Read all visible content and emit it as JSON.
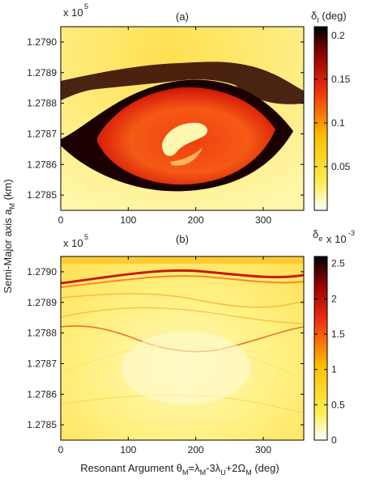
{
  "shared": {
    "ylabel_main": "Semi-Major axis a",
    "ylabel_sub": "M",
    "ylabel_unit": " (km)",
    "xlabel_parts": [
      "Resonant Argument θ",
      "M",
      "=λ",
      "M",
      "-3λ",
      "U",
      "+2Ω",
      "M",
      " (deg)"
    ]
  },
  "chart_data": [
    {
      "type": "heatmap",
      "title": "(a)",
      "x_ticks": [
        "0",
        "100",
        "200",
        "300"
      ],
      "x_tick_values": [
        0,
        100,
        200,
        300
      ],
      "xlim": [
        0,
        360
      ],
      "y_multiplier": "x 10",
      "y_multiplier_exp": "5",
      "y_ticks": [
        "1.2785",
        "1.2786",
        "1.2787",
        "1.2788",
        "1.2789",
        "1.2790"
      ],
      "y_tick_values": [
        1.2785,
        1.2786,
        1.2787,
        1.2788,
        1.2789,
        1.279
      ],
      "ylim": [
        1.27845,
        1.27905
      ],
      "colorbar": {
        "label_symbol": "δ",
        "label_sub": "I",
        "label_unit": " (deg)",
        "ticks": [
          "0.05",
          "0.1",
          "0.15",
          "0.2"
        ],
        "tick_values": [
          0.05,
          0.1,
          0.15,
          0.2
        ],
        "range": [
          0,
          0.21
        ],
        "colormap": [
          "#ffffff",
          "#ffee55",
          "#ffc000",
          "#f03010",
          "#900000",
          "#000000"
        ]
      }
    },
    {
      "type": "heatmap",
      "title": "(b)",
      "x_ticks": [
        "0",
        "100",
        "200",
        "300"
      ],
      "x_tick_values": [
        0,
        100,
        200,
        300
      ],
      "xlim": [
        0,
        360
      ],
      "y_multiplier": "x 10",
      "y_multiplier_exp": "5",
      "y_ticks": [
        "1.2785",
        "1.2786",
        "1.2787",
        "1.2788",
        "1.2789",
        "1.2790"
      ],
      "y_tick_values": [
        1.2785,
        1.2786,
        1.2787,
        1.2788,
        1.2789,
        1.279
      ],
      "ylim": [
        1.27845,
        1.27905
      ],
      "colorbar": {
        "label_symbol": "δ",
        "label_sub": "e",
        "multiplier": "x 10",
        "multiplier_exp": "-3",
        "ticks": [
          "0",
          "0.5",
          "1",
          "1.5",
          "2",
          "2.5"
        ],
        "tick_values": [
          0,
          0.5,
          1,
          1.5,
          2,
          2.5
        ],
        "range": [
          0,
          2.6
        ],
        "colormap": [
          "#ffffff",
          "#ffee55",
          "#ffc000",
          "#f03010",
          "#900000",
          "#000000"
        ]
      }
    }
  ]
}
